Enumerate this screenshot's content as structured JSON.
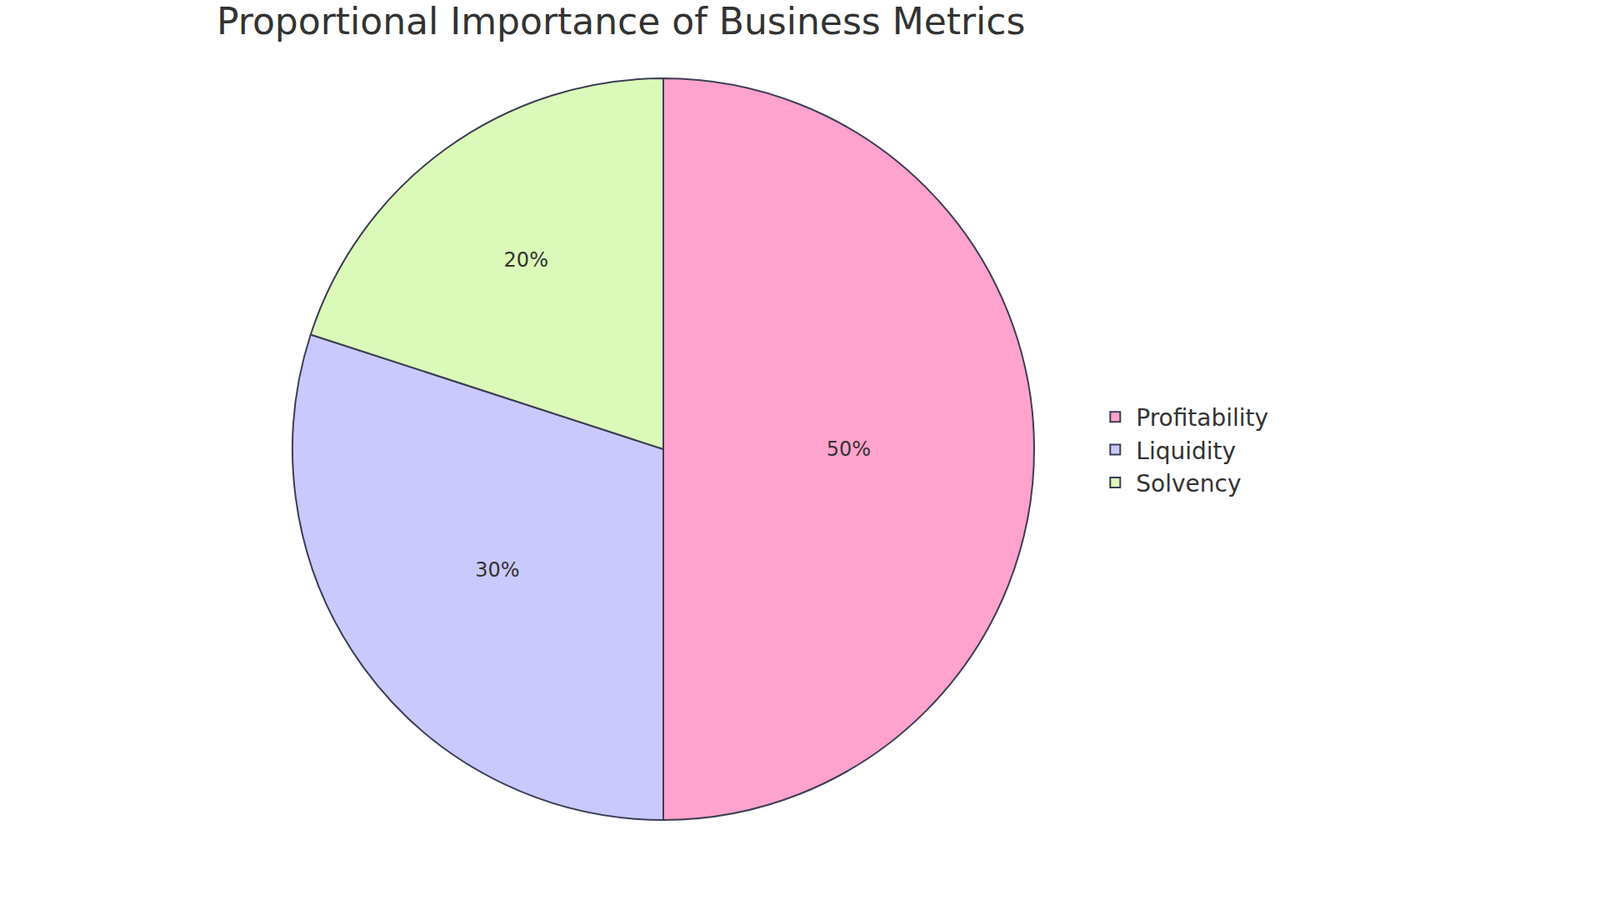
{
  "chart_data": {
    "type": "pie",
    "title": "Proportional Importance of Business Metrics",
    "categories": [
      "Profitability",
      "Liquidity",
      "Solvency"
    ],
    "values": [
      50,
      30,
      20
    ],
    "value_labels": [
      "50%",
      "30%",
      "20%"
    ],
    "colors": [
      "#ffa2cd",
      "#c9c9fe",
      "#dbf9b9"
    ],
    "data_labels": true,
    "legend": "right"
  }
}
